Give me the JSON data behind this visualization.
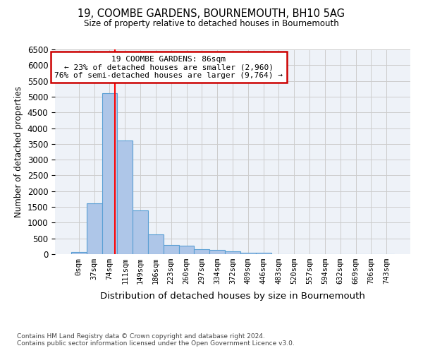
{
  "title": "19, COOMBE GARDENS, BOURNEMOUTH, BH10 5AG",
  "subtitle": "Size of property relative to detached houses in Bournemouth",
  "xlabel": "Distribution of detached houses by size in Bournemouth",
  "ylabel": "Number of detached properties",
  "bin_labels": [
    "0sqm",
    "37sqm",
    "74sqm",
    "111sqm",
    "149sqm",
    "186sqm",
    "223sqm",
    "260sqm",
    "297sqm",
    "334sqm",
    "372sqm",
    "409sqm",
    "446sqm",
    "483sqm",
    "520sqm",
    "557sqm",
    "594sqm",
    "632sqm",
    "669sqm",
    "706sqm",
    "743sqm"
  ],
  "bar_values": [
    75,
    1620,
    5100,
    3600,
    1400,
    620,
    300,
    275,
    160,
    130,
    85,
    50,
    50,
    0,
    0,
    0,
    0,
    0,
    0,
    0,
    0
  ],
  "bar_color": "#aec6e8",
  "bar_edgecolor": "#5a9fd4",
  "red_line_x": 2.35,
  "annotation_text": "19 COOMBE GARDENS: 86sqm\n← 23% of detached houses are smaller (2,960)\n76% of semi-detached houses are larger (9,764) →",
  "annotation_box_color": "#ffffff",
  "annotation_box_edgecolor": "#cc0000",
  "ylim": [
    0,
    6500
  ],
  "yticks": [
    0,
    500,
    1000,
    1500,
    2000,
    2500,
    3000,
    3500,
    4000,
    4500,
    5000,
    5500,
    6000,
    6500
  ],
  "footnote1": "Contains HM Land Registry data © Crown copyright and database right 2024.",
  "footnote2": "Contains public sector information licensed under the Open Government Licence v3.0.",
  "background_color": "#ffffff",
  "grid_color": "#cccccc",
  "axes_bg_color": "#eef2f8"
}
